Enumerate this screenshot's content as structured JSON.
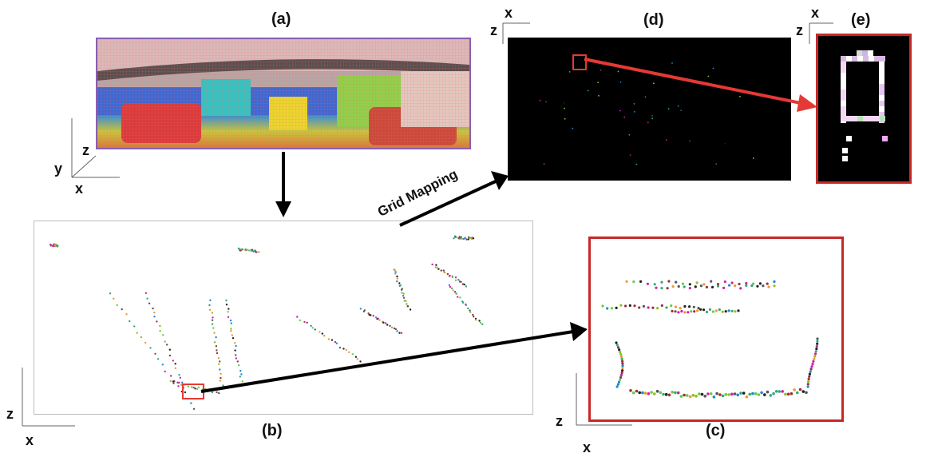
{
  "panels": {
    "a": {
      "label": "(a)"
    },
    "b": {
      "label": "(b)"
    },
    "c": {
      "label": "(c)"
    },
    "d": {
      "label": "(d)"
    },
    "e": {
      "label": "(e)"
    }
  },
  "axes": {
    "a": {
      "y": "y",
      "z": "z",
      "x": "x"
    },
    "b": {
      "z": "z",
      "x": "x"
    },
    "c": {
      "z": "z",
      "x": "x"
    },
    "d": {
      "x": "x",
      "z": "z"
    },
    "e": {
      "x": "x",
      "z": "z"
    }
  },
  "arrow_text": {
    "grid_mapping": "Grid Mapping"
  },
  "colors": {
    "highlight_box": "#e53935",
    "frame_red": "#c62828",
    "arrow_black": "#000000",
    "arrow_red": "#e53935"
  }
}
